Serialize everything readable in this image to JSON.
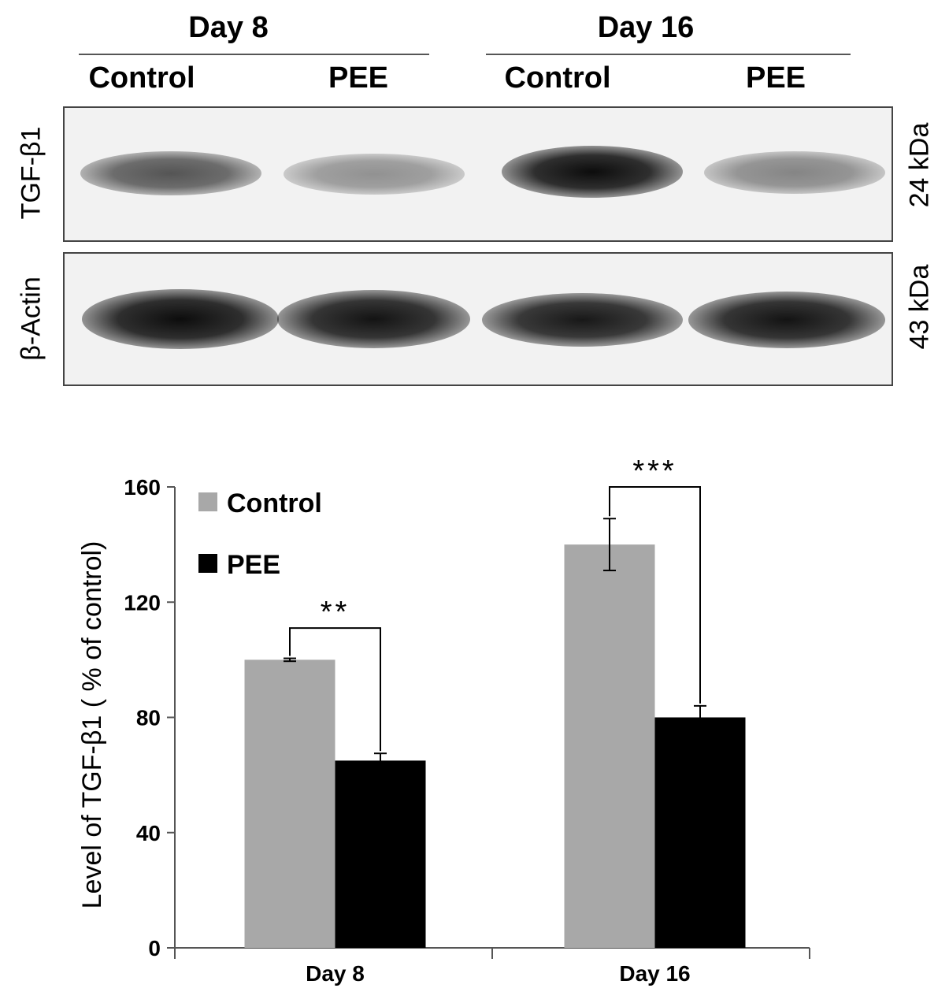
{
  "blot": {
    "day_headers": [
      "Day 8",
      "Day 16"
    ],
    "lane_labels": [
      "Control",
      "PEE",
      "Control",
      "PEE"
    ],
    "rows": [
      {
        "protein": "TGF-β1",
        "mw": "24 kDa",
        "band_intensity": [
          0.65,
          0.4,
          0.95,
          0.45
        ]
      },
      {
        "protein": "β-Actin",
        "mw": "43 kDa",
        "band_intensity": [
          0.95,
          0.92,
          0.9,
          0.92
        ]
      }
    ]
  },
  "chart_data": {
    "type": "bar",
    "categories": [
      "Day 8",
      "Day 16"
    ],
    "series": [
      {
        "name": "Control",
        "values": [
          100,
          140
        ],
        "errors": [
          0.5,
          9
        ],
        "color": "#a8a8a8"
      },
      {
        "name": "PEE",
        "values": [
          65,
          80
        ],
        "errors": [
          2.5,
          4
        ],
        "color": "#000000"
      }
    ],
    "ylabel": "Level of TGF-β1 ( % of control)",
    "xlabel": "",
    "ylim": [
      0,
      160
    ],
    "yticks": [
      0,
      40,
      80,
      120,
      160
    ],
    "significance": [
      {
        "category": "Day 8",
        "label": "**"
      },
      {
        "category": "Day 16",
        "label": "***"
      }
    ],
    "legend_position": "top-left",
    "grid": false
  }
}
